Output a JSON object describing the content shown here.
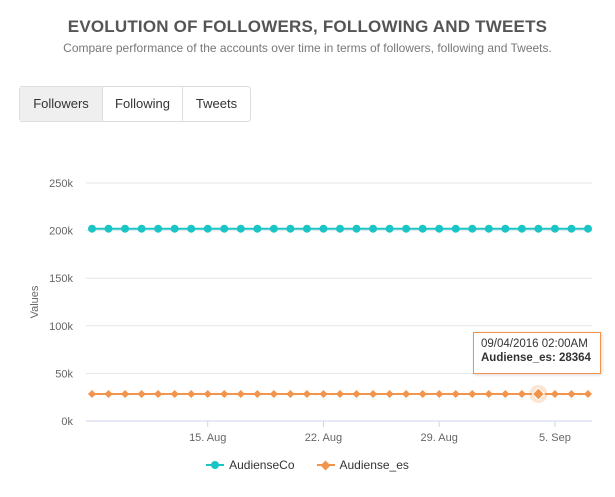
{
  "header": {
    "title": "EVOLUTION OF FOLLOWERS, FOLLOWING AND TWEETS",
    "subtitle": "Compare performance of the accounts over time in terms of followers, following and Tweets."
  },
  "tabs": [
    {
      "label": "Followers",
      "active": true
    },
    {
      "label": "Following",
      "active": false
    },
    {
      "label": "Tweets",
      "active": false
    }
  ],
  "chart_data": {
    "type": "line",
    "ylabel": "Values",
    "xlabel": "",
    "ylim": [
      0,
      250000
    ],
    "yticks": [
      0,
      50000,
      100000,
      150000,
      200000,
      250000
    ],
    "ytick_labels": [
      "0k",
      "50k",
      "100k",
      "150k",
      "200k",
      "250k"
    ],
    "x_tick_labels": [
      "15. Aug",
      "22. Aug",
      "29. Aug",
      "5. Sep"
    ],
    "x_tick_dates": [
      "2016-08-15",
      "2016-08-22",
      "2016-08-29",
      "2016-09-05"
    ],
    "x": [
      "2016-08-08",
      "2016-08-09",
      "2016-08-10",
      "2016-08-11",
      "2016-08-12",
      "2016-08-13",
      "2016-08-14",
      "2016-08-15",
      "2016-08-16",
      "2016-08-17",
      "2016-08-18",
      "2016-08-19",
      "2016-08-20",
      "2016-08-21",
      "2016-08-22",
      "2016-08-23",
      "2016-08-24",
      "2016-08-25",
      "2016-08-26",
      "2016-08-27",
      "2016-08-28",
      "2016-08-29",
      "2016-08-30",
      "2016-08-31",
      "2016-09-01",
      "2016-09-02",
      "2016-09-03",
      "2016-09-04",
      "2016-09-05",
      "2016-09-06",
      "2016-09-07"
    ],
    "series": [
      {
        "name": "AudienseCo",
        "color": "#1bc5c5",
        "marker": "circle",
        "values": [
          202000,
          202000,
          202000,
          202000,
          202000,
          202000,
          202000,
          202000,
          202000,
          202000,
          202000,
          202000,
          202000,
          202000,
          202000,
          202000,
          202000,
          202000,
          202000,
          202000,
          202000,
          202000,
          202000,
          202000,
          202000,
          202000,
          202000,
          202000,
          202000,
          202000,
          202000
        ]
      },
      {
        "name": "Audiense_es",
        "color": "#f3944d",
        "marker": "diamond",
        "values": [
          28364,
          28364,
          28364,
          28364,
          28364,
          28364,
          28364,
          28364,
          28364,
          28364,
          28364,
          28364,
          28364,
          28364,
          28364,
          28364,
          28364,
          28364,
          28364,
          28364,
          28364,
          28364,
          28364,
          28364,
          28364,
          28364,
          28364,
          28364,
          28364,
          28364,
          28364
        ]
      }
    ],
    "grid": true,
    "legend_position": "bottom"
  },
  "tooltip": {
    "date": "09/04/2016 02:00AM",
    "label": "Audiense_es: 28364"
  }
}
